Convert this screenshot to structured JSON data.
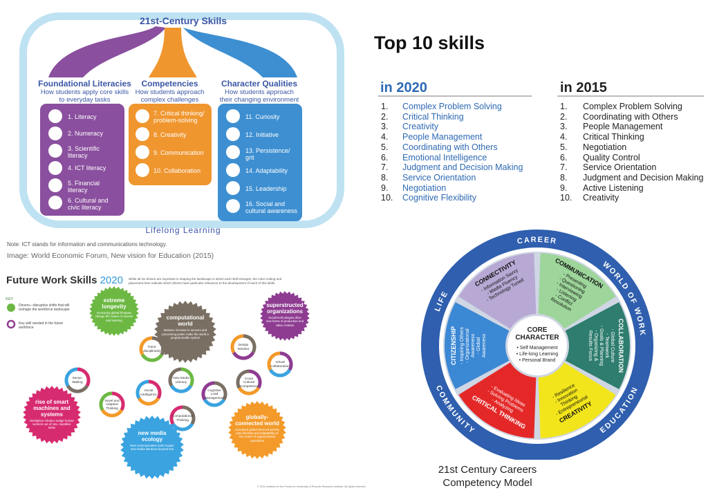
{
  "wef": {
    "title": "21st-Century Skills",
    "columns": [
      {
        "heading": "Foundational Literacies",
        "sub": "How students apply core skills to everyday tasks",
        "items": [
          "1. Literacy",
          "2. Numeracy",
          "3. Scientific literacy",
          "4. ICT literacy",
          "5. Financial literacy",
          "6. Cultural and civic literacy"
        ]
      },
      {
        "heading": "Competencies",
        "sub": "How students approach complex challenges",
        "items": [
          "7. Critical thinking/ problem-solving",
          "8. Creativity",
          "9. Communication",
          "10. Collaboration"
        ]
      },
      {
        "heading": "Character Qualities",
        "sub": "How students approach their changing environment",
        "items": [
          "11. Curiosity",
          "12. Initiative",
          "13. Persistence/ grit",
          "14. Adaptability",
          "15. Leadership",
          "16. Social and cultural awareness"
        ]
      }
    ],
    "footer": "Lifelong Learning",
    "note": "Note: ICT stands for information and communications technology.",
    "credit": "Image: World Economic Forum, New vision for Education (2015)",
    "colors": {
      "purple": "#8a4f9e",
      "orange": "#f0962f",
      "blue": "#3d8fd1",
      "frame": "#bfe2f2",
      "text": "#3a56a5"
    }
  },
  "top10": {
    "title": "Top 10 skills",
    "col2020": {
      "heading_pre": "in ",
      "heading_year": "2020",
      "items": [
        "Complex Problem Solving",
        "Critical Thinking",
        "Creativity",
        "People Management",
        "Coordinating with Others",
        "Emotional Intelligence",
        "Judgment and Decision Making",
        "Service Orientation",
        "Negotiation",
        "Cognitive Flexibility"
      ]
    },
    "col2015": {
      "heading": "in  2015",
      "items": [
        "Complex Problem Solving",
        "Coordinating with Others",
        "People Management",
        "Critical Thinking",
        "Negotiation",
        "Quality Control",
        "Service Orientation",
        "Judgment and Decision Making",
        "Active Listening",
        "Creativity"
      ]
    },
    "numbers": [
      "1.",
      "2.",
      "3.",
      "4.",
      "5.",
      "6.",
      "7.",
      "8.",
      "9.",
      "10."
    ],
    "colors": {
      "y2020": "#2d69b4",
      "y2015": "#222222"
    }
  },
  "fws": {
    "title": "Future Work Skills",
    "year": "2020",
    "intro": "While all six drivers are important in shaping the landscape in which each skill emerges, the color-coding and placement here indicate which drivers have particular relevance to the development of each of this skills.",
    "key_label": "KEY",
    "key_drivers": "Drivers—disruptive shifts that will reshape the workforce landscape",
    "key_skills": "Key skill needed in the future workforce",
    "drivers": [
      {
        "name": "extreme longevity",
        "desc": "Increasing global lifespans change the nature of careers and learning",
        "color": "#6cb843"
      },
      {
        "name": "computational world",
        "desc": "Massive increase in sensors and processing power make the world a programmable system",
        "color": "#7a6f63"
      },
      {
        "name": "superstructed organizations",
        "desc": "Social technologies drive new forms of production and value creation",
        "color": "#8e3c91"
      },
      {
        "name": "rise of smart machines and systems",
        "desc": "Workplace robotics nudge human workers out of rote, repetitive tasks",
        "color": "#d72b70"
      },
      {
        "name": "new media ecology",
        "desc": "New communication tools require new media literacies beyond text",
        "color": "#3aa3e0"
      },
      {
        "name": "globally-connected world",
        "desc": "Increased global interconnectivity puts diversity and adaptability at the center of organizational operations",
        "color": "#f39a2a"
      }
    ],
    "skills": [
      "Trans-disciplinarity",
      "Design Mindset",
      "Virtual Collaboration",
      "Sense-Making",
      "Social Intelligence",
      "New Media Literacy",
      "Cross Cultural Competency",
      "Cognitive Load Management",
      "Novel and Adaptive Thinking",
      "Computational Thinking"
    ],
    "copyright": "© 2011 Institute for the Future for University of Phoenix Research Institute. All rights reserved."
  },
  "ccm": {
    "ring_words": [
      "CAREER",
      "WORLD OF WORK",
      "EDUCATION",
      "COMMUNITY",
      "LIFE"
    ],
    "core_title": [
      "CORE",
      "CHARACTER"
    ],
    "core_items": [
      "• Self Management",
      "• Life-long Learning",
      "• Personal Brand"
    ],
    "segments": [
      {
        "name": "CONNECTIVITY",
        "items": [
          "- Information Savvy",
          "- Media Fluency",
          "- Technology Tuned"
        ],
        "color": "#b7a9d4"
      },
      {
        "name": "COMMUNICATION",
        "items": [
          "- Presenting",
          "- Questioning",
          "- Interviewing",
          "- Listening",
          "- Conflict",
          "  Resolution"
        ],
        "color": "#9dd59a"
      },
      {
        "name": "COLLABORATION",
        "items": [
          "- Global Culture",
          "- Teamwork",
          "- Goals & Planning",
          "- Organizing &",
          "  Results Focus"
        ],
        "color": "#2e7d6e"
      },
      {
        "name": "CREATIVITY",
        "items": [
          "- Entrepreneurial",
          "  Thinking",
          "- Innovation",
          "- Resilience"
        ],
        "color": "#f2e51b"
      },
      {
        "name": "CRITICAL THINKING",
        "items": [
          "- Analyzing",
          "- Solving Problems",
          "- Evaluating Ideas"
        ],
        "color": "#e42828"
      },
      {
        "name": "CITIZENSHIP",
        "items": [
          "- Inspiring Others",
          "- Organizational",
          "  Awareness",
          "- Global",
          "  Awareness"
        ],
        "color": "#3b88d4"
      }
    ],
    "caption": [
      "21st Century Careers",
      "Competency Model"
    ],
    "colors": {
      "ring": "#2f5fae",
      "core": "#ffffff"
    }
  }
}
